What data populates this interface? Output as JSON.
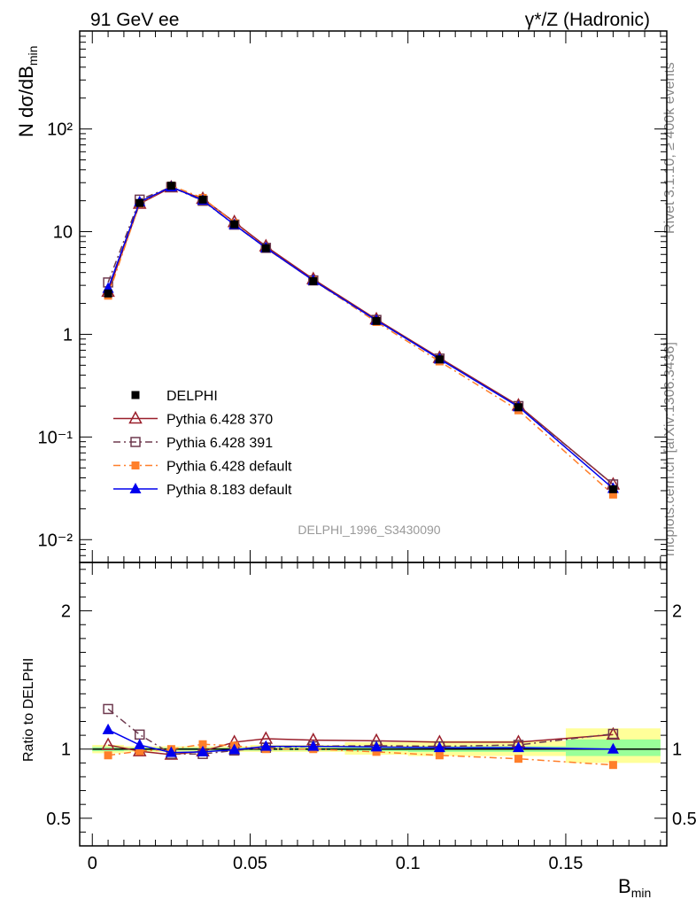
{
  "header": {
    "left_title": "91 GeV ee",
    "right_title_sup": "γ*/Z (Hadronic)"
  },
  "side_text": {
    "top": "Rivet 3.1.10, ≥ 400k events",
    "bottom": "mcplots.cern.ch [arXiv:1306.3436]"
  },
  "analysis_id": "DELPHI_1996_S3430090",
  "colors": {
    "data": "#000000",
    "p6_370": "#9a1f2b",
    "p6_391": "#6e3a4f",
    "p6_default": "#ff7f2a",
    "p8_default": "#0000ee",
    "band_outer": "#ffff99",
    "band_inner": "#99ff99"
  },
  "chart_data": [
    {
      "type": "line",
      "panel": "main",
      "ylabel_main": "N dσ/dB",
      "ylabel_sub": "min",
      "yscale": "log",
      "ylim": [
        0.006,
        900
      ],
      "xlim": [
        -0.004,
        0.182
      ],
      "y_tick_labels": [
        "10⁻²",
        "10⁻¹",
        "1",
        "10",
        "10²"
      ],
      "x": [
        0.005,
        0.015,
        0.025,
        0.035,
        0.045,
        0.055,
        0.07,
        0.09,
        0.11,
        0.135,
        0.165
      ],
      "series": [
        {
          "name": "DELPHI",
          "style": "data",
          "values": [
            2.5,
            19.0,
            28.0,
            20.5,
            11.8,
            6.9,
            3.3,
            1.35,
            0.57,
            0.195,
            0.031
          ]
        },
        {
          "name": "Pythia 6.428 370",
          "style": "p6_370",
          "values": [
            2.6,
            18.7,
            27.0,
            20.9,
            12.4,
            7.2,
            3.45,
            1.4,
            0.59,
            0.203,
            0.0345
          ]
        },
        {
          "name": "Pythia 6.428 391",
          "style": "p6_391",
          "values": [
            3.2,
            20.5,
            27.2,
            20.0,
            11.7,
            6.95,
            3.35,
            1.38,
            0.58,
            0.2,
            0.0345
          ]
        },
        {
          "name": "Pythia 6.428 default",
          "style": "p6_default",
          "values": [
            2.38,
            18.8,
            28.0,
            21.3,
            12.1,
            6.9,
            3.35,
            1.32,
            0.545,
            0.182,
            0.0275
          ]
        },
        {
          "name": "Pythia 8.183 default",
          "style": "p8_default",
          "values": [
            2.8,
            19.5,
            27.3,
            20.2,
            11.7,
            6.95,
            3.35,
            1.37,
            0.575,
            0.197,
            0.0315
          ]
        }
      ],
      "legend_placement": "bottom-left"
    },
    {
      "type": "line",
      "panel": "ratio",
      "ylabel": "Ratio to DELPHI",
      "xlabel_main": "B",
      "xlabel_sub": "min",
      "ylim": [
        0.3,
        2.35
      ],
      "xlim": [
        -0.004,
        0.182
      ],
      "x_tick_labels": [
        "0",
        "0.05",
        "0.1",
        "0.15"
      ],
      "y_tick_labels": [
        "0.5",
        "1",
        "2"
      ],
      "x": [
        0.005,
        0.015,
        0.025,
        0.035,
        0.045,
        0.055,
        0.07,
        0.09,
        0.11,
        0.135,
        0.165
      ],
      "bands": [
        {
          "x0": 0.0,
          "x1": 0.01,
          "outer": [
            0.97,
            1.03
          ],
          "inner": [
            0.985,
            1.015
          ]
        },
        {
          "x0": 0.01,
          "x1": 0.02,
          "outer": [
            0.98,
            1.02
          ],
          "inner": [
            0.99,
            1.01
          ]
        },
        {
          "x0": 0.02,
          "x1": 0.03,
          "outer": [
            0.98,
            1.02
          ],
          "inner": [
            0.99,
            1.01
          ]
        },
        {
          "x0": 0.03,
          "x1": 0.04,
          "outer": [
            0.98,
            1.02
          ],
          "inner": [
            0.99,
            1.01
          ]
        },
        {
          "x0": 0.04,
          "x1": 0.05,
          "outer": [
            0.98,
            1.02
          ],
          "inner": [
            0.99,
            1.01
          ]
        },
        {
          "x0": 0.05,
          "x1": 0.06,
          "outer": [
            0.98,
            1.03
          ],
          "inner": [
            0.99,
            1.01
          ]
        },
        {
          "x0": 0.06,
          "x1": 0.08,
          "outer": [
            0.98,
            1.03
          ],
          "inner": [
            0.99,
            1.01
          ]
        },
        {
          "x0": 0.08,
          "x1": 0.1,
          "outer": [
            0.96,
            1.05
          ],
          "inner": [
            0.985,
            1.015
          ]
        },
        {
          "x0": 0.1,
          "x1": 0.12,
          "outer": [
            0.95,
            1.06
          ],
          "inner": [
            0.98,
            1.02
          ]
        },
        {
          "x0": 0.12,
          "x1": 0.15,
          "outer": [
            0.95,
            1.06
          ],
          "inner": [
            0.98,
            1.02
          ]
        },
        {
          "x0": 0.15,
          "x1": 0.18,
          "outer": [
            0.9,
            1.15
          ],
          "inner": [
            0.95,
            1.07
          ]
        }
      ],
      "series": [
        {
          "name": "Pythia 6.428 370",
          "style": "p6_370",
          "values": [
            1.03,
            0.985,
            0.96,
            0.985,
            1.05,
            1.075,
            1.065,
            1.06,
            1.05,
            1.05,
            1.105
          ]
        },
        {
          "name": "Pythia 6.428 391",
          "style": "p6_391",
          "values": [
            1.29,
            1.105,
            0.965,
            0.965,
            0.99,
            1.01,
            1.02,
            1.025,
            1.02,
            1.03,
            1.11
          ]
        },
        {
          "name": "Pythia 6.428 default",
          "style": "p6_default",
          "values": [
            0.955,
            0.985,
            1.0,
            1.035,
            1.025,
            1.0,
            1.0,
            0.98,
            0.955,
            0.93,
            0.885
          ]
        },
        {
          "name": "Pythia 8.183 default",
          "style": "p8_default",
          "values": [
            1.14,
            1.03,
            0.975,
            0.98,
            0.995,
            1.02,
            1.02,
            1.015,
            1.01,
            1.01,
            1.0
          ]
        }
      ]
    }
  ]
}
